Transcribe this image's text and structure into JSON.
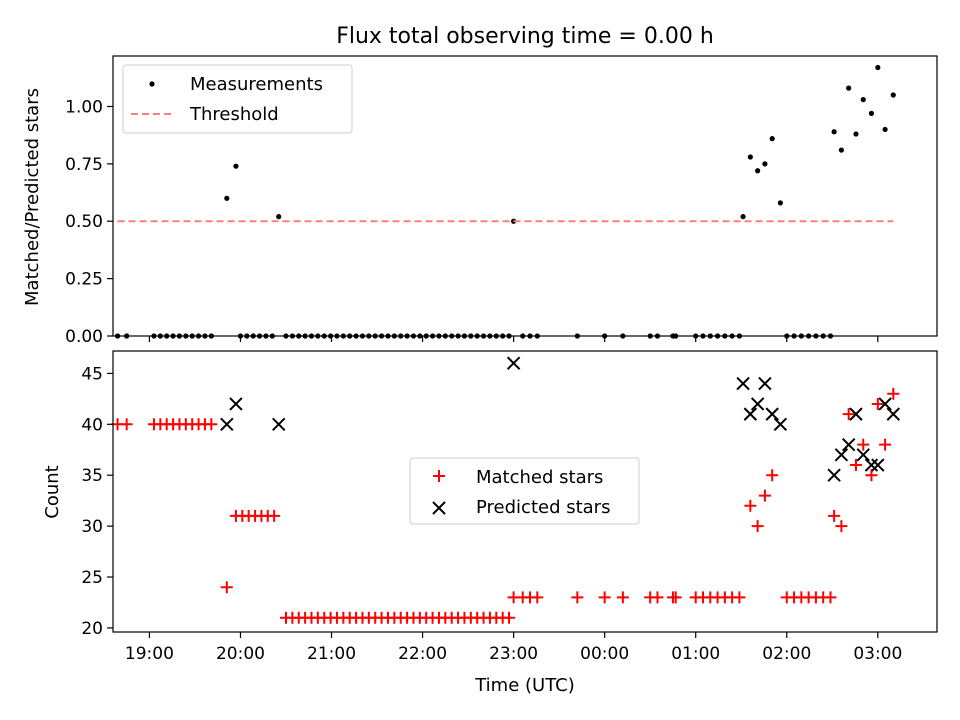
{
  "chart_data": [
    {
      "type": "scatter",
      "title": "Flux total observing time = 0.00 h",
      "xlabel": "",
      "ylabel": "Matched/Predicted stars",
      "ylim": [
        0.0,
        1.22
      ],
      "xlim": [
        -0.4,
        8.65
      ],
      "x_unit": "hours after 19:00 UTC",
      "yticks": [
        0.0,
        0.25,
        0.5,
        0.75,
        1.0
      ],
      "ytick_labels": [
        "0.00",
        "0.25",
        "0.50",
        "0.75",
        "1.00"
      ],
      "legend": {
        "placement": "top-left",
        "entries": [
          "Measurements",
          "Threshold"
        ]
      },
      "series": [
        {
          "name": "Measurements",
          "marker": "dot",
          "color": "#000000",
          "points": [
            [
              -0.35,
              0.0
            ],
            [
              -0.25,
              0.0
            ],
            [
              0.05,
              0.0
            ],
            [
              0.12,
              0.0
            ],
            [
              0.19,
              0.0
            ],
            [
              0.26,
              0.0
            ],
            [
              0.33,
              0.0
            ],
            [
              0.4,
              0.0
            ],
            [
              0.47,
              0.0
            ],
            [
              0.54,
              0.0
            ],
            [
              0.61,
              0.0
            ],
            [
              0.68,
              0.0
            ],
            [
              0.85,
              0.6
            ],
            [
              0.95,
              0.74
            ],
            [
              1.0,
              0.0
            ],
            [
              1.07,
              0.0
            ],
            [
              1.14,
              0.0
            ],
            [
              1.21,
              0.0
            ],
            [
              1.28,
              0.0
            ],
            [
              1.35,
              0.0
            ],
            [
              1.42,
              0.52
            ],
            [
              1.5,
              0.0
            ],
            [
              1.57,
              0.0
            ],
            [
              1.64,
              0.0
            ],
            [
              1.71,
              0.0
            ],
            [
              1.78,
              0.0
            ],
            [
              1.85,
              0.0
            ],
            [
              1.92,
              0.0
            ],
            [
              1.99,
              0.0
            ],
            [
              2.06,
              0.0
            ],
            [
              2.13,
              0.0
            ],
            [
              2.2,
              0.0
            ],
            [
              2.27,
              0.0
            ],
            [
              2.34,
              0.0
            ],
            [
              2.41,
              0.0
            ],
            [
              2.48,
              0.0
            ],
            [
              2.55,
              0.0
            ],
            [
              2.62,
              0.0
            ],
            [
              2.69,
              0.0
            ],
            [
              2.76,
              0.0
            ],
            [
              2.83,
              0.0
            ],
            [
              2.9,
              0.0
            ],
            [
              2.97,
              0.0
            ],
            [
              3.04,
              0.0
            ],
            [
              3.11,
              0.0
            ],
            [
              3.18,
              0.0
            ],
            [
              3.25,
              0.0
            ],
            [
              3.32,
              0.0
            ],
            [
              3.39,
              0.0
            ],
            [
              3.46,
              0.0
            ],
            [
              3.53,
              0.0
            ],
            [
              3.6,
              0.0
            ],
            [
              3.67,
              0.0
            ],
            [
              3.74,
              0.0
            ],
            [
              3.81,
              0.0
            ],
            [
              3.88,
              0.0
            ],
            [
              3.95,
              0.0
            ],
            [
              4.0,
              0.5
            ],
            [
              4.1,
              0.0
            ],
            [
              4.18,
              0.0
            ],
            [
              4.26,
              0.0
            ],
            [
              4.7,
              0.0
            ],
            [
              5.0,
              0.0
            ],
            [
              5.2,
              0.0
            ],
            [
              5.5,
              0.0
            ],
            [
              5.58,
              0.0
            ],
            [
              5.75,
              0.0
            ],
            [
              5.78,
              0.0
            ],
            [
              6.0,
              0.0
            ],
            [
              6.08,
              0.0
            ],
            [
              6.16,
              0.0
            ],
            [
              6.24,
              0.0
            ],
            [
              6.32,
              0.0
            ],
            [
              6.4,
              0.0
            ],
            [
              6.48,
              0.0
            ],
            [
              6.52,
              0.52
            ],
            [
              6.6,
              0.78
            ],
            [
              6.68,
              0.72
            ],
            [
              6.76,
              0.75
            ],
            [
              6.84,
              0.86
            ],
            [
              6.93,
              0.58
            ],
            [
              7.0,
              0.0
            ],
            [
              7.08,
              0.0
            ],
            [
              7.16,
              0.0
            ],
            [
              7.24,
              0.0
            ],
            [
              7.32,
              0.0
            ],
            [
              7.4,
              0.0
            ],
            [
              7.48,
              0.0
            ],
            [
              7.52,
              0.89
            ],
            [
              7.6,
              0.81
            ],
            [
              7.68,
              1.08
            ],
            [
              7.76,
              0.88
            ],
            [
              7.84,
              1.03
            ],
            [
              7.93,
              0.97
            ],
            [
              8.0,
              1.17
            ],
            [
              8.08,
              0.9
            ],
            [
              8.17,
              1.05
            ]
          ]
        },
        {
          "name": "Threshold",
          "marker": "dashed-line",
          "color": "#ff7f7f",
          "points": [
            [
              -0.35,
              0.5
            ],
            [
              8.17,
              0.5
            ]
          ]
        }
      ]
    },
    {
      "type": "scatter",
      "title": "",
      "xlabel": "Time (UTC)",
      "ylabel": "Count",
      "ylim": [
        19.6,
        47.2
      ],
      "xlim": [
        -0.4,
        8.65
      ],
      "x_unit": "hours after 19:00 UTC",
      "yticks": [
        20,
        25,
        30,
        35,
        40,
        45
      ],
      "ytick_labels": [
        "20",
        "25",
        "30",
        "35",
        "40",
        "45"
      ],
      "xticks": [
        0,
        1,
        2,
        3,
        4,
        5,
        6,
        7,
        8
      ],
      "xtick_labels": [
        "19:00",
        "20:00",
        "21:00",
        "22:00",
        "23:00",
        "00:00",
        "01:00",
        "02:00",
        "03:00"
      ],
      "legend": {
        "placement": "center",
        "entries": [
          "Matched stars",
          "Predicted stars"
        ]
      },
      "series": [
        {
          "name": "Matched stars",
          "marker": "plus",
          "color": "#ff0000",
          "points": [
            [
              -0.35,
              40
            ],
            [
              -0.25,
              40
            ],
            [
              0.05,
              40
            ],
            [
              0.12,
              40
            ],
            [
              0.19,
              40
            ],
            [
              0.26,
              40
            ],
            [
              0.33,
              40
            ],
            [
              0.4,
              40
            ],
            [
              0.47,
              40
            ],
            [
              0.54,
              40
            ],
            [
              0.61,
              40
            ],
            [
              0.68,
              40
            ],
            [
              0.85,
              24
            ],
            [
              0.95,
              31
            ],
            [
              1.02,
              31
            ],
            [
              1.09,
              31
            ],
            [
              1.16,
              31
            ],
            [
              1.23,
              31
            ],
            [
              1.3,
              31
            ],
            [
              1.37,
              31
            ],
            [
              1.5,
              21
            ],
            [
              1.57,
              21
            ],
            [
              1.64,
              21
            ],
            [
              1.71,
              21
            ],
            [
              1.78,
              21
            ],
            [
              1.85,
              21
            ],
            [
              1.92,
              21
            ],
            [
              1.99,
              21
            ],
            [
              2.06,
              21
            ],
            [
              2.13,
              21
            ],
            [
              2.2,
              21
            ],
            [
              2.27,
              21
            ],
            [
              2.34,
              21
            ],
            [
              2.41,
              21
            ],
            [
              2.48,
              21
            ],
            [
              2.55,
              21
            ],
            [
              2.62,
              21
            ],
            [
              2.69,
              21
            ],
            [
              2.76,
              21
            ],
            [
              2.83,
              21
            ],
            [
              2.9,
              21
            ],
            [
              2.97,
              21
            ],
            [
              3.04,
              21
            ],
            [
              3.11,
              21
            ],
            [
              3.18,
              21
            ],
            [
              3.25,
              21
            ],
            [
              3.32,
              21
            ],
            [
              3.39,
              21
            ],
            [
              3.46,
              21
            ],
            [
              3.53,
              21
            ],
            [
              3.6,
              21
            ],
            [
              3.67,
              21
            ],
            [
              3.74,
              21
            ],
            [
              3.81,
              21
            ],
            [
              3.88,
              21
            ],
            [
              3.95,
              21
            ],
            [
              4.0,
              23
            ],
            [
              4.1,
              23
            ],
            [
              4.18,
              23
            ],
            [
              4.26,
              23
            ],
            [
              4.7,
              23
            ],
            [
              5.0,
              23
            ],
            [
              5.2,
              23
            ],
            [
              5.5,
              23
            ],
            [
              5.58,
              23
            ],
            [
              5.75,
              23
            ],
            [
              5.78,
              23
            ],
            [
              6.0,
              23
            ],
            [
              6.08,
              23
            ],
            [
              6.16,
              23
            ],
            [
              6.24,
              23
            ],
            [
              6.32,
              23
            ],
            [
              6.4,
              23
            ],
            [
              6.48,
              23
            ],
            [
              6.6,
              32
            ],
            [
              6.68,
              30
            ],
            [
              6.76,
              33
            ],
            [
              6.84,
              35
            ],
            [
              7.0,
              23
            ],
            [
              7.08,
              23
            ],
            [
              7.16,
              23
            ],
            [
              7.24,
              23
            ],
            [
              7.32,
              23
            ],
            [
              7.4,
              23
            ],
            [
              7.48,
              23
            ],
            [
              7.52,
              31
            ],
            [
              7.6,
              30
            ],
            [
              7.68,
              41
            ],
            [
              7.76,
              36
            ],
            [
              7.84,
              38
            ],
            [
              7.93,
              35
            ],
            [
              8.0,
              42
            ],
            [
              8.08,
              38
            ],
            [
              8.17,
              43
            ]
          ]
        },
        {
          "name": "Predicted stars",
          "marker": "x",
          "color": "#000000",
          "points": [
            [
              0.85,
              40
            ],
            [
              0.95,
              42
            ],
            [
              1.42,
              40
            ],
            [
              4.0,
              46
            ],
            [
              6.52,
              44
            ],
            [
              6.6,
              41
            ],
            [
              6.68,
              42
            ],
            [
              6.76,
              44
            ],
            [
              6.84,
              41
            ],
            [
              6.93,
              40
            ],
            [
              7.52,
              35
            ],
            [
              7.6,
              37
            ],
            [
              7.68,
              38
            ],
            [
              7.76,
              41
            ],
            [
              7.84,
              37
            ],
            [
              7.93,
              36
            ],
            [
              8.0,
              36
            ],
            [
              8.08,
              42
            ],
            [
              8.17,
              41
            ]
          ]
        }
      ]
    }
  ]
}
